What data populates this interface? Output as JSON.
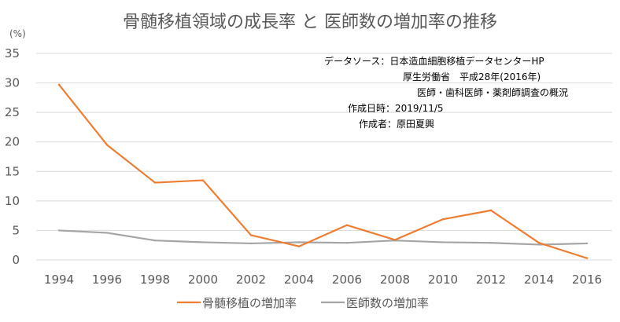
{
  "chart_data": {
    "type": "line",
    "title": "骨髄移植領域の成長率 と 医師数の増加率の推移",
    "ylabel": "(%)",
    "xlabel": "",
    "x": [
      1994,
      1996,
      1998,
      2000,
      2002,
      2004,
      2006,
      2008,
      2010,
      2012,
      2014,
      2016
    ],
    "xticks": [
      "1994",
      "1996",
      "1998",
      "2000",
      "2002",
      "2004",
      "2006",
      "2008",
      "2010",
      "2012",
      "2014",
      "2016"
    ],
    "ylim": [
      0,
      35
    ],
    "yticks": [
      0,
      5,
      10,
      15,
      20,
      25,
      30,
      35
    ],
    "grid": true,
    "legend_position": "bottom",
    "series": [
      {
        "name": "骨髄移植の増加率",
        "color": "#ED7D31",
        "values": [
          29.7,
          19.5,
          13.1,
          13.5,
          4.2,
          2.3,
          5.9,
          3.4,
          6.9,
          8.4,
          2.9,
          0.3
        ]
      },
      {
        "name": "医師数の増加率",
        "color": "#A5A5A5",
        "values": [
          5.0,
          4.6,
          3.3,
          3.0,
          2.8,
          3.0,
          2.9,
          3.3,
          3.0,
          2.9,
          2.6,
          2.8
        ]
      }
    ],
    "annotations": [
      "データソース：日本造血細胞移植データセンターHP",
      "厚生労働省　平成28年(2016年)",
      "医師・歯科医師・薬剤師調査の概況",
      "作成日時：2019/11/5",
      "作成者：原田夏興"
    ]
  }
}
